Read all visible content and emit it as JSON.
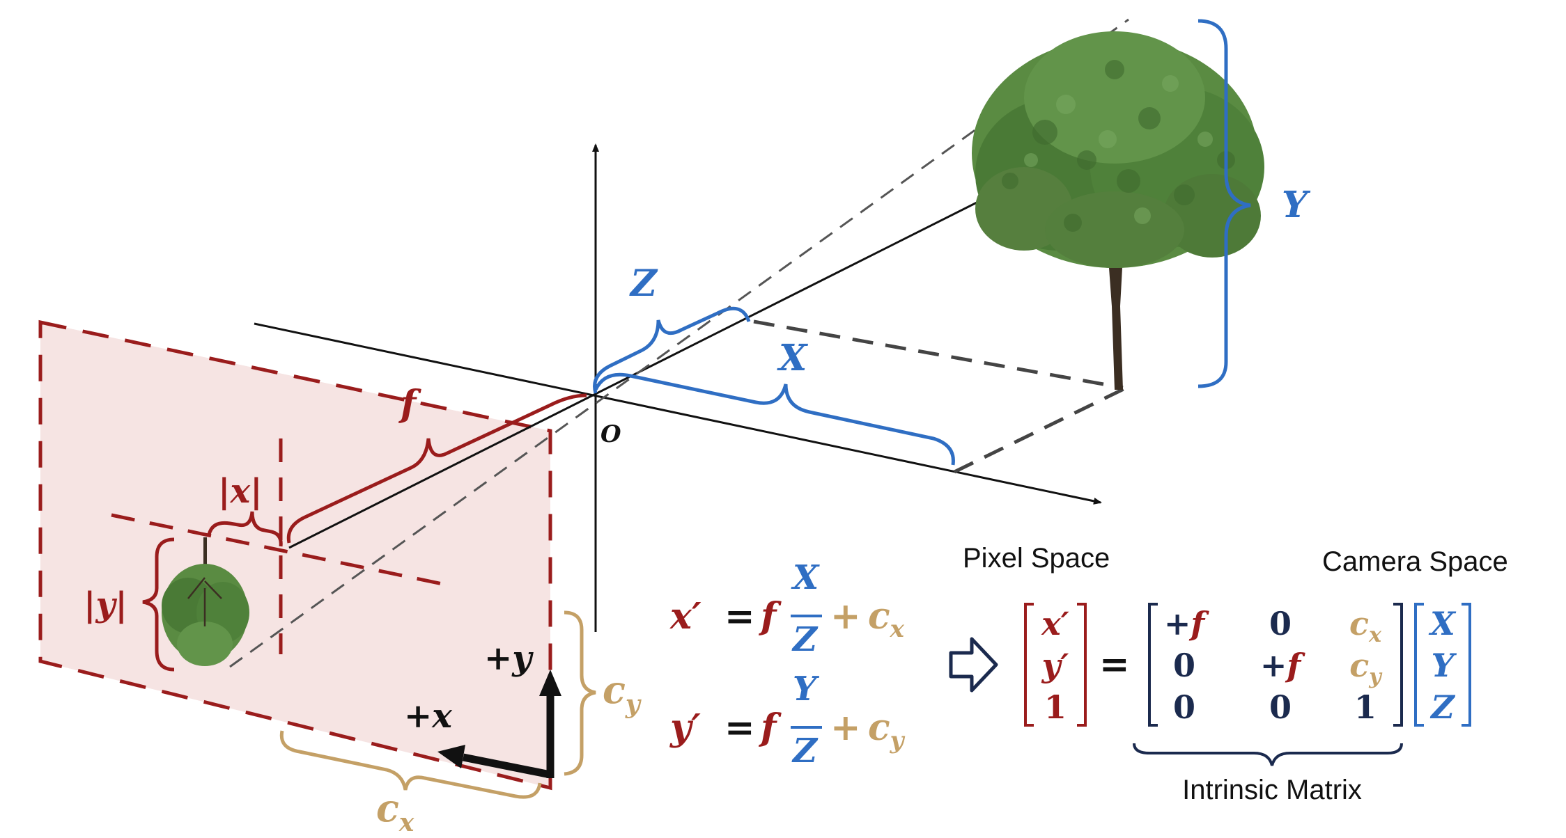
{
  "colors": {
    "red": "#9a1c1c",
    "blue": "#2f6ec3",
    "tan": "#c4a066",
    "navy": "#1b2a4e",
    "black": "#111111",
    "plane_fill": "#f6e4e3",
    "tree_green": "#4f7f3a",
    "tree_trunk": "#3b2e22"
  },
  "icons": {
    "tree": "tree-icon",
    "inverted_tree": "inverted-tree-icon",
    "arrow": "hollow-right-arrow-icon"
  },
  "labels": {
    "origin": "O",
    "Z": "Z",
    "X": "X",
    "Y": "Y",
    "f": "f",
    "abs_x": "|x|",
    "abs_y": "|y|",
    "plus_x": "+x",
    "plus_y": "+y",
    "cx": "c",
    "cx_sub": "x",
    "cy": "c",
    "cy_sub": "y"
  },
  "equations": {
    "eq1": {
      "lhs": "x′",
      "eq": "=",
      "f": "f",
      "num": "X",
      "den": "Z",
      "plus": "+",
      "c": "c",
      "sub": "x"
    },
    "eq2": {
      "lhs": "y′",
      "eq": "=",
      "f": "f",
      "num": "Y",
      "den": "Z",
      "plus": "+",
      "c": "c",
      "sub": "y"
    }
  },
  "matrix": {
    "pixel_space": "Pixel Space",
    "camera_space": "Camera Space",
    "intrinsic": "Intrinsic Matrix",
    "equals": "=",
    "pixel_vec": [
      "x′",
      "y′",
      "1"
    ],
    "camera_vec": [
      "X",
      "Y",
      "Z"
    ],
    "K": {
      "r1": [
        "+f",
        "0",
        "c"
      ],
      "r2": [
        "0",
        "+f",
        "c"
      ],
      "r3": [
        "0",
        "0",
        "1"
      ],
      "c_subs": [
        "x",
        "y"
      ]
    }
  }
}
